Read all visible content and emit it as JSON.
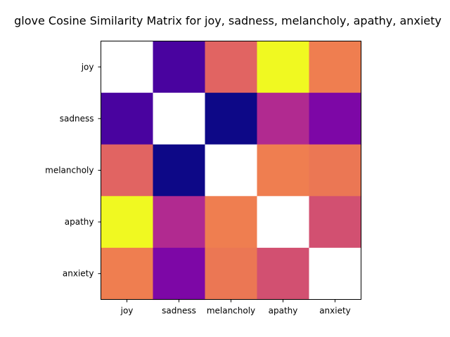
{
  "chart_data": {
    "type": "heatmap",
    "title": "glove Cosine Similarity Matrix for joy, sadness, melancholy, apathy, anxiety",
    "xlabel": "",
    "ylabel": "",
    "x_categories": [
      "joy",
      "sadness",
      "melancholy",
      "apathy",
      "anxiety"
    ],
    "y_categories": [
      "joy",
      "sadness",
      "melancholy",
      "apathy",
      "anxiety"
    ],
    "colormap": "plasma",
    "diagonal_masked": true,
    "diagonal_color": "#ffffff",
    "legend": "none",
    "grid": false,
    "matrix_norm": [
      [
        null,
        0.12,
        0.6,
        1.0,
        0.68
      ],
      [
        0.12,
        null,
        0.0,
        0.4,
        0.25
      ],
      [
        0.6,
        0.0,
        null,
        0.68,
        0.66
      ],
      [
        1.0,
        0.4,
        0.68,
        null,
        0.53
      ],
      [
        0.68,
        0.25,
        0.66,
        0.53,
        null
      ]
    ]
  }
}
